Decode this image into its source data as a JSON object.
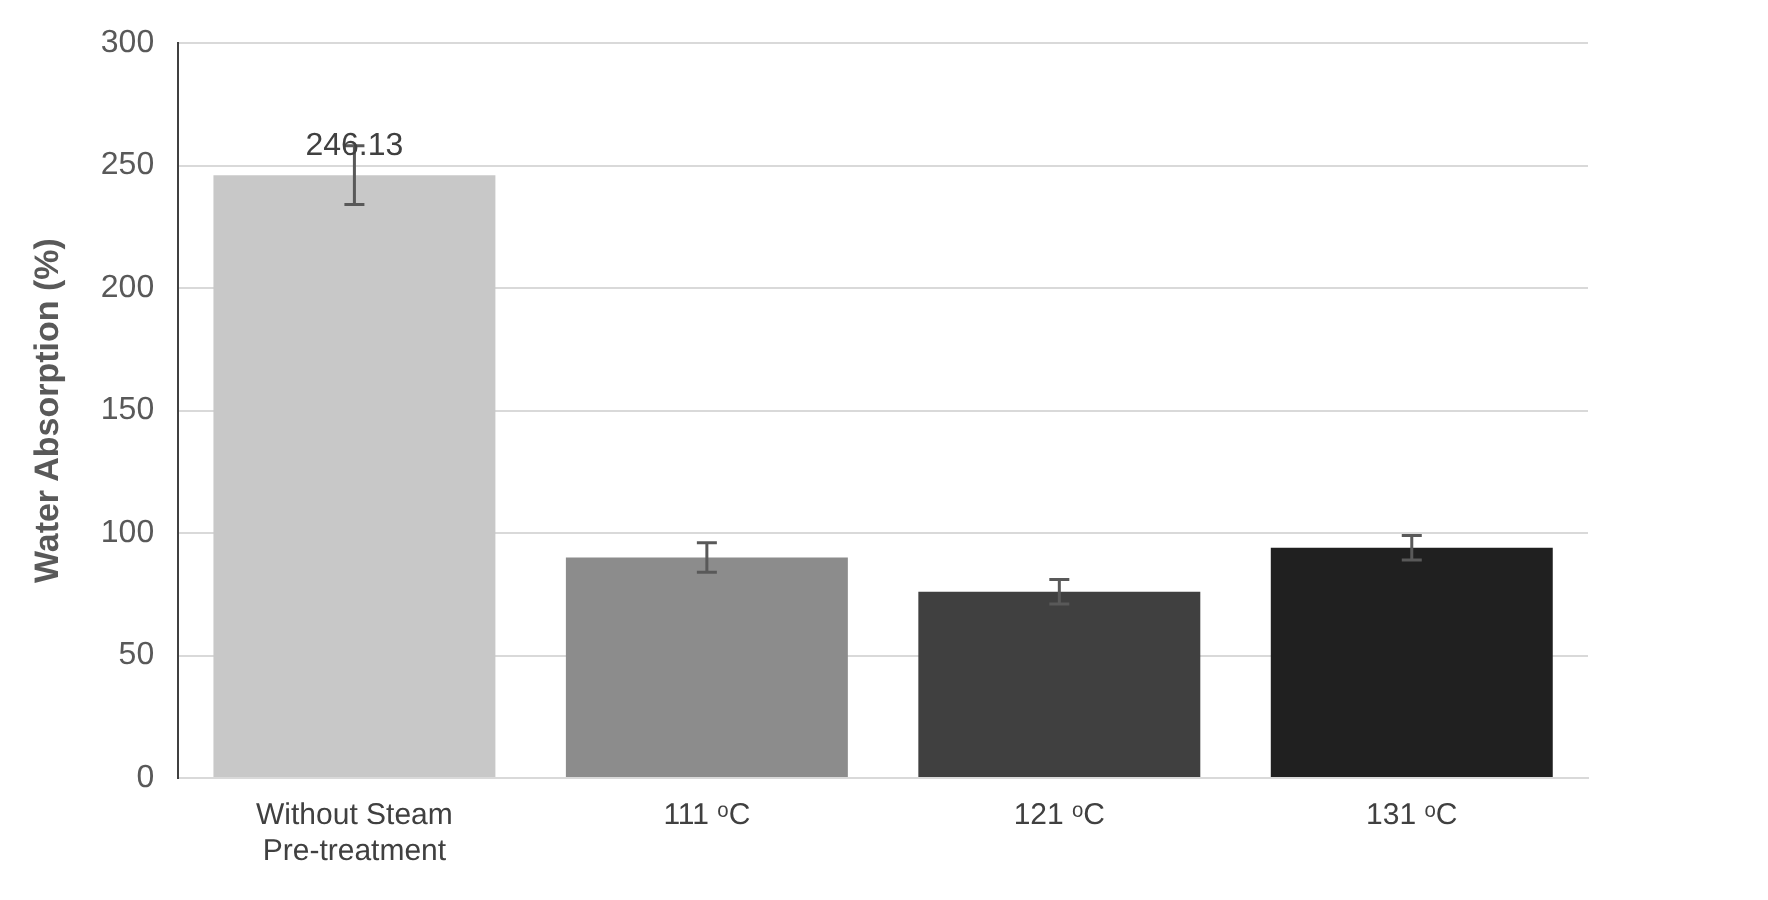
{
  "chart_data": {
    "type": "bar",
    "ylabel": "Water Absorption (%)",
    "categories": [
      "Without Steam Pre-treatment",
      "111 ᵒC",
      "121 ᵒC",
      "131 ᵒC"
    ],
    "values": [
      246.13,
      90,
      76,
      94
    ],
    "errors": [
      12,
      6,
      5,
      5
    ],
    "value_labels": [
      "246.13",
      null,
      null,
      null
    ],
    "colors": [
      "#c8c8c8",
      "#8c8c8c",
      "#404040",
      "#202020"
    ],
    "ylim": [
      0,
      300
    ],
    "yticks": [
      0,
      50,
      100,
      150,
      200,
      250,
      300
    ],
    "grid": "y",
    "legend": false
  }
}
